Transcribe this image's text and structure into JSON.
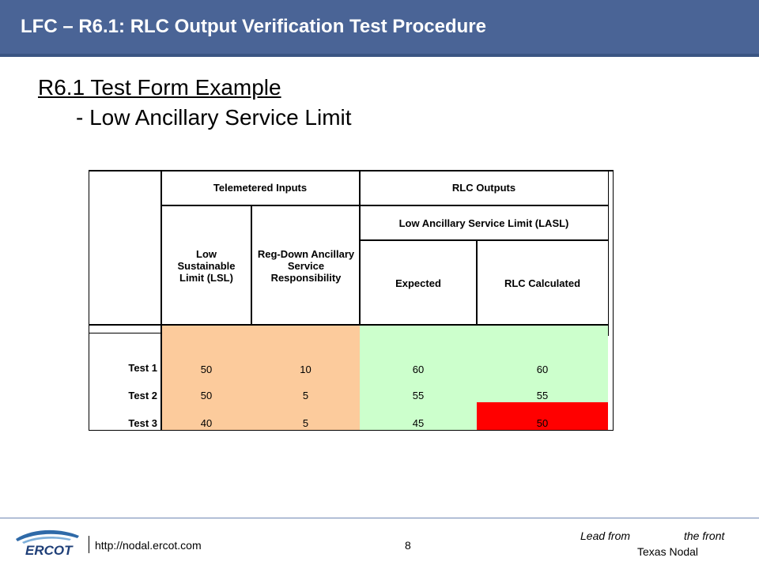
{
  "header": {
    "title": "LFC – R6.1: RLC Output Verification Test Procedure"
  },
  "slide": {
    "title": "R6.1 Test Form Example",
    "subtitle": "- Low Ancillary Service Limit"
  },
  "table": {
    "group_telemetered": "Telemetered Inputs",
    "group_rlc": "RLC Outputs",
    "lasl_header": "Low Ancillary Service Limit (LASL)",
    "col_lsl": "Low Sustainable Limit (LSL)",
    "col_regdown": "Reg-Down Ancillary Service Responsibility",
    "col_expected": "Expected",
    "col_rlc_calc": "RLC Calculated",
    "rows": [
      {
        "label": "Test 1",
        "lsl": "50",
        "regdown": "10",
        "expected": "60",
        "rlc": "60"
      },
      {
        "label": "Test 2",
        "lsl": "50",
        "regdown": "5",
        "expected": "55",
        "rlc": "55"
      },
      {
        "label": "Test 3",
        "lsl": "40",
        "regdown": "5",
        "expected": "45",
        "rlc": "50"
      }
    ],
    "colors": {
      "input_fill": "#fccb9c",
      "output_fill": "#ccffcc",
      "mismatch_fill": "#ff0000"
    }
  },
  "footer": {
    "url": "http://nodal.ercot.com",
    "page": "8",
    "tagline_left": "Lead from",
    "tagline_right": "the front",
    "tagline_sub": "Texas Nodal",
    "logo_text": "ERCOT"
  }
}
